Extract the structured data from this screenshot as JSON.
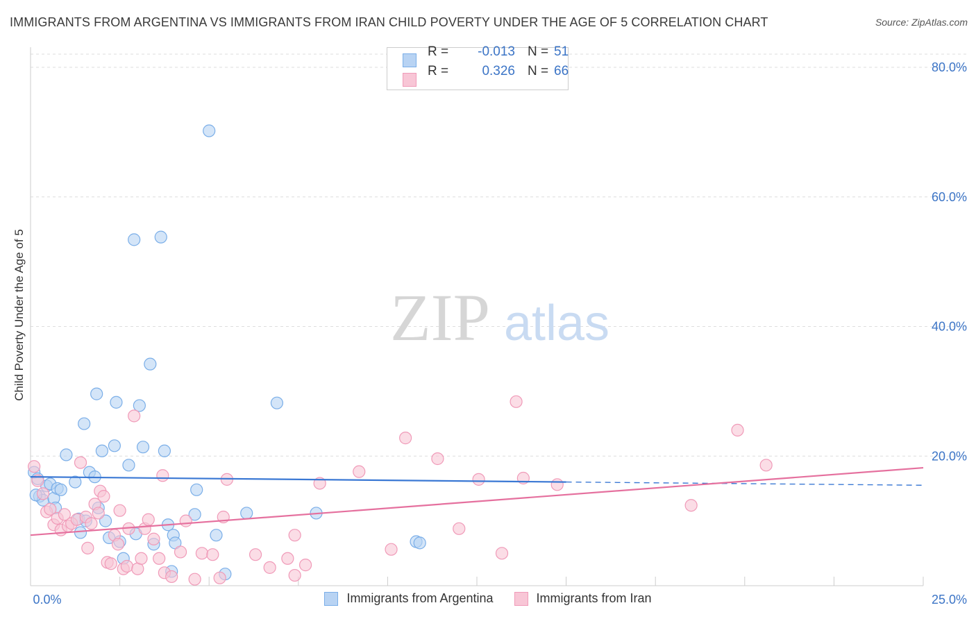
{
  "header": {
    "title": "IMMIGRANTS FROM ARGENTINA VS IMMIGRANTS FROM IRAN CHILD POVERTY UNDER THE AGE OF 5 CORRELATION CHART",
    "source": "Source: ZipAtlas.com"
  },
  "watermark": {
    "zip": "ZIP",
    "atlas": "atlas"
  },
  "stats": {
    "rows": [
      {
        "r_label": "R =",
        "r_value": "-0.013",
        "n_label": "N =",
        "n_value": "51",
        "color": "#7aaee8"
      },
      {
        "r_label": "R =",
        "r_value": "0.326",
        "n_label": "N =",
        "n_value": "66",
        "color": "#f09ab8"
      }
    ]
  },
  "colors": {
    "argentina_fill": "#b8d3f3",
    "argentina_stroke": "#7aaee8",
    "argentina_line": "#3a78d4",
    "iran_fill": "#f8c6d6",
    "iran_stroke": "#f09ab8",
    "iran_line": "#e5709e",
    "tick_text": "#3b74c6",
    "grid": "#dddddd"
  },
  "chart_data": {
    "type": "scatter",
    "title": "IMMIGRANTS FROM ARGENTINA VS IMMIGRANTS FROM IRAN CHILD POVERTY UNDER THE AGE OF 5 CORRELATION CHART",
    "xlabel": "",
    "ylabel": "Child Poverty Under the Age of 5",
    "xlim": [
      0,
      25
    ],
    "ylim": [
      0,
      80
    ],
    "x_ticks": [
      {
        "value": 0,
        "label": "0.0%"
      },
      {
        "value": 25,
        "label": "25.0%"
      }
    ],
    "y_ticks": [
      {
        "value": 20,
        "label": "20.0%"
      },
      {
        "value": 40,
        "label": "40.0%"
      },
      {
        "value": 60,
        "label": "60.0%"
      },
      {
        "value": 80,
        "label": "80.0%"
      }
    ],
    "grid": "horizontal dashed",
    "legend_position": "bottom",
    "series": [
      {
        "name": "Immigrants from Argentina",
        "trend": {
          "x0": 0,
          "y0": 16.8,
          "x1": 15,
          "y1": 16.0,
          "dash_to_x": 25,
          "dash_to_y": 15.5
        },
        "points": [
          [
            0.1,
            17.5
          ],
          [
            0.2,
            16.5
          ],
          [
            0.25,
            13.8
          ],
          [
            0.35,
            13.2
          ],
          [
            0.45,
            15.4
          ],
          [
            0.55,
            15.7
          ],
          [
            0.65,
            13.5
          ],
          [
            0.7,
            12.0
          ],
          [
            0.75,
            15.0
          ],
          [
            0.85,
            14.8
          ],
          [
            1.0,
            20.2
          ],
          [
            1.25,
            16.0
          ],
          [
            1.35,
            10.3
          ],
          [
            1.4,
            8.2
          ],
          [
            1.5,
            25.0
          ],
          [
            1.55,
            10.0
          ],
          [
            1.65,
            17.5
          ],
          [
            1.8,
            16.8
          ],
          [
            1.85,
            29.6
          ],
          [
            1.9,
            12.0
          ],
          [
            2.0,
            20.8
          ],
          [
            2.1,
            10.0
          ],
          [
            2.2,
            7.4
          ],
          [
            2.35,
            21.6
          ],
          [
            2.4,
            28.3
          ],
          [
            2.5,
            6.8
          ],
          [
            2.6,
            4.2
          ],
          [
            2.75,
            18.6
          ],
          [
            2.9,
            53.4
          ],
          [
            2.95,
            8.0
          ],
          [
            3.05,
            27.8
          ],
          [
            3.15,
            21.4
          ],
          [
            3.35,
            34.2
          ],
          [
            3.45,
            6.4
          ],
          [
            3.65,
            53.8
          ],
          [
            3.75,
            20.8
          ],
          [
            3.85,
            9.4
          ],
          [
            4.0,
            7.8
          ],
          [
            4.05,
            6.6
          ],
          [
            3.95,
            2.2
          ],
          [
            4.6,
            11.0
          ],
          [
            4.65,
            14.8
          ],
          [
            5.0,
            70.2
          ],
          [
            5.2,
            7.8
          ],
          [
            5.45,
            1.8
          ],
          [
            6.05,
            11.2
          ],
          [
            6.9,
            28.2
          ],
          [
            8.0,
            11.2
          ],
          [
            10.8,
            6.8
          ],
          [
            10.9,
            6.6
          ],
          [
            0.15,
            14.0
          ]
        ]
      },
      {
        "name": "Immigrants from Iran",
        "trend": {
          "x0": 0,
          "y0": 7.8,
          "x1": 25,
          "y1": 18.2
        },
        "points": [
          [
            0.1,
            18.4
          ],
          [
            0.2,
            16.2
          ],
          [
            0.35,
            14.2
          ],
          [
            0.45,
            11.4
          ],
          [
            0.55,
            11.8
          ],
          [
            0.65,
            9.4
          ],
          [
            0.75,
            10.4
          ],
          [
            0.85,
            8.6
          ],
          [
            0.95,
            11.0
          ],
          [
            1.05,
            9.2
          ],
          [
            1.15,
            9.6
          ],
          [
            1.3,
            10.2
          ],
          [
            1.4,
            19.0
          ],
          [
            1.55,
            10.6
          ],
          [
            1.6,
            5.8
          ],
          [
            1.7,
            9.6
          ],
          [
            1.8,
            12.6
          ],
          [
            1.9,
            11.2
          ],
          [
            1.95,
            14.6
          ],
          [
            2.05,
            13.8
          ],
          [
            2.15,
            3.6
          ],
          [
            2.25,
            3.4
          ],
          [
            2.35,
            7.8
          ],
          [
            2.45,
            6.4
          ],
          [
            2.5,
            11.6
          ],
          [
            2.6,
            2.6
          ],
          [
            2.7,
            3.0
          ],
          [
            2.75,
            8.8
          ],
          [
            2.9,
            26.2
          ],
          [
            3.0,
            2.6
          ],
          [
            3.1,
            4.2
          ],
          [
            3.2,
            8.8
          ],
          [
            3.3,
            10.2
          ],
          [
            3.45,
            7.2
          ],
          [
            3.6,
            4.2
          ],
          [
            3.7,
            17.0
          ],
          [
            3.75,
            2.0
          ],
          [
            3.95,
            1.4
          ],
          [
            4.2,
            5.2
          ],
          [
            4.35,
            10.0
          ],
          [
            4.6,
            1.0
          ],
          [
            4.8,
            5.0
          ],
          [
            5.1,
            4.8
          ],
          [
            5.3,
            1.2
          ],
          [
            5.4,
            10.6
          ],
          [
            5.5,
            16.4
          ],
          [
            6.3,
            4.8
          ],
          [
            6.7,
            2.8
          ],
          [
            7.2,
            4.2
          ],
          [
            7.4,
            7.8
          ],
          [
            7.4,
            1.6
          ],
          [
            7.7,
            3.2
          ],
          [
            8.1,
            15.8
          ],
          [
            9.2,
            17.6
          ],
          [
            10.1,
            5.6
          ],
          [
            10.5,
            22.8
          ],
          [
            11.4,
            19.6
          ],
          [
            12.0,
            8.8
          ],
          [
            12.55,
            16.4
          ],
          [
            13.2,
            5.0
          ],
          [
            13.6,
            28.4
          ],
          [
            13.8,
            16.6
          ],
          [
            14.75,
            15.6
          ],
          [
            18.5,
            12.4
          ],
          [
            19.8,
            24.0
          ],
          [
            20.6,
            18.6
          ]
        ]
      }
    ]
  },
  "legend": {
    "items": [
      {
        "label": "Immigrants from Argentina"
      },
      {
        "label": "Immigrants from Iran"
      }
    ]
  }
}
